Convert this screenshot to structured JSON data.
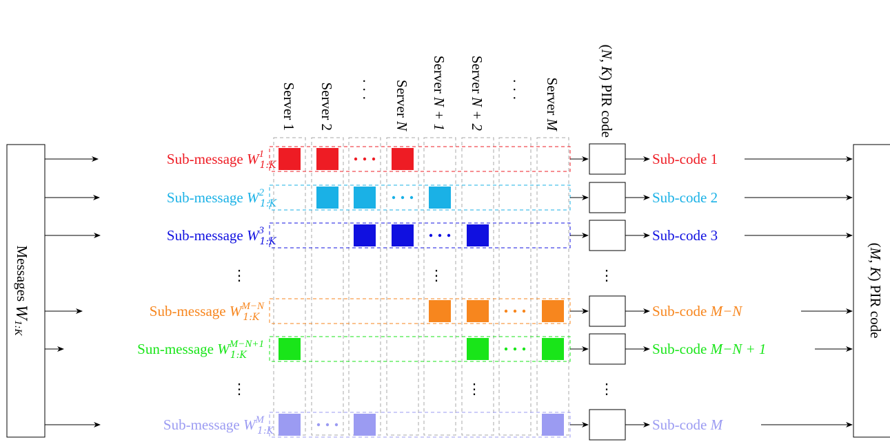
{
  "left_box": {
    "label_text": "Messages ",
    "label_math": "W",
    "label_sub": "1:K"
  },
  "right_box": {
    "label_prefix": "(",
    "label_math": "M, K",
    "label_suffix": ") PIR code"
  },
  "servers": [
    {
      "text": "Server 1"
    },
    {
      "text": "Server 2"
    },
    {
      "text": "· · ·"
    },
    {
      "text": "Server ",
      "math": "N"
    },
    {
      "text": "Server ",
      "math": "N + 1"
    },
    {
      "text": "Server ",
      "math": "N + 2"
    },
    {
      "text": "· · ·"
    },
    {
      "text": "Server ",
      "math": "M"
    }
  ],
  "pir_column_header": {
    "prefix": "(",
    "math": "N, K",
    "suffix": ") PIR code"
  },
  "rows": [
    {
      "sub_prefix": "Sub-message ",
      "sub_math": "W",
      "sup": "1",
      "sub_index": "1:K",
      "code_prefix": "Sub-code ",
      "code_value": "1",
      "color": "#ee1c24",
      "dots_col": 2,
      "squares": [
        0,
        1,
        3
      ]
    },
    {
      "sub_prefix": "Sub-message ",
      "sub_math": "W",
      "sup": "2",
      "sub_index": "1:K",
      "code_prefix": "Sub-code ",
      "code_value": "2",
      "color": "#1ab1e6",
      "dots_col": 3,
      "squares": [
        1,
        2,
        4
      ]
    },
    {
      "sub_prefix": "Sub-message ",
      "sub_math": "W",
      "sup": "3",
      "sub_index": "1:K",
      "code_prefix": "Sub-code ",
      "code_value": "3",
      "color": "#1010e0",
      "dots_col": 4,
      "squares": [
        2,
        3,
        5
      ]
    },
    {
      "sub_prefix": "Sub-message ",
      "sub_math": "W",
      "sup": "M−N",
      "sub_index": "1:K",
      "code_prefix": "Sub-code ",
      "code_value": "M−N",
      "code_math": true,
      "color": "#f7861e",
      "dots_col": 6,
      "squares": [
        4,
        5,
        7
      ]
    },
    {
      "sub_prefix": "Sun-message ",
      "sub_math": "W",
      "sup": "M−N+1",
      "sub_index": "1:K",
      "code_prefix": "Sub-code ",
      "code_value": "M−N + 1",
      "code_math": true,
      "color": "#19e519",
      "dots_col": 6,
      "squares": [
        0,
        5,
        7
      ]
    },
    {
      "sub_prefix": "Sub-message ",
      "sub_math": "W",
      "sup": "M",
      "sub_index": "1:K",
      "code_prefix": "Sub-code ",
      "code_value": "M",
      "code_math": true,
      "color": "#9b9bf2",
      "dots_col": 1,
      "squares": [
        0,
        2,
        7
      ]
    }
  ],
  "vdots": "⋮"
}
